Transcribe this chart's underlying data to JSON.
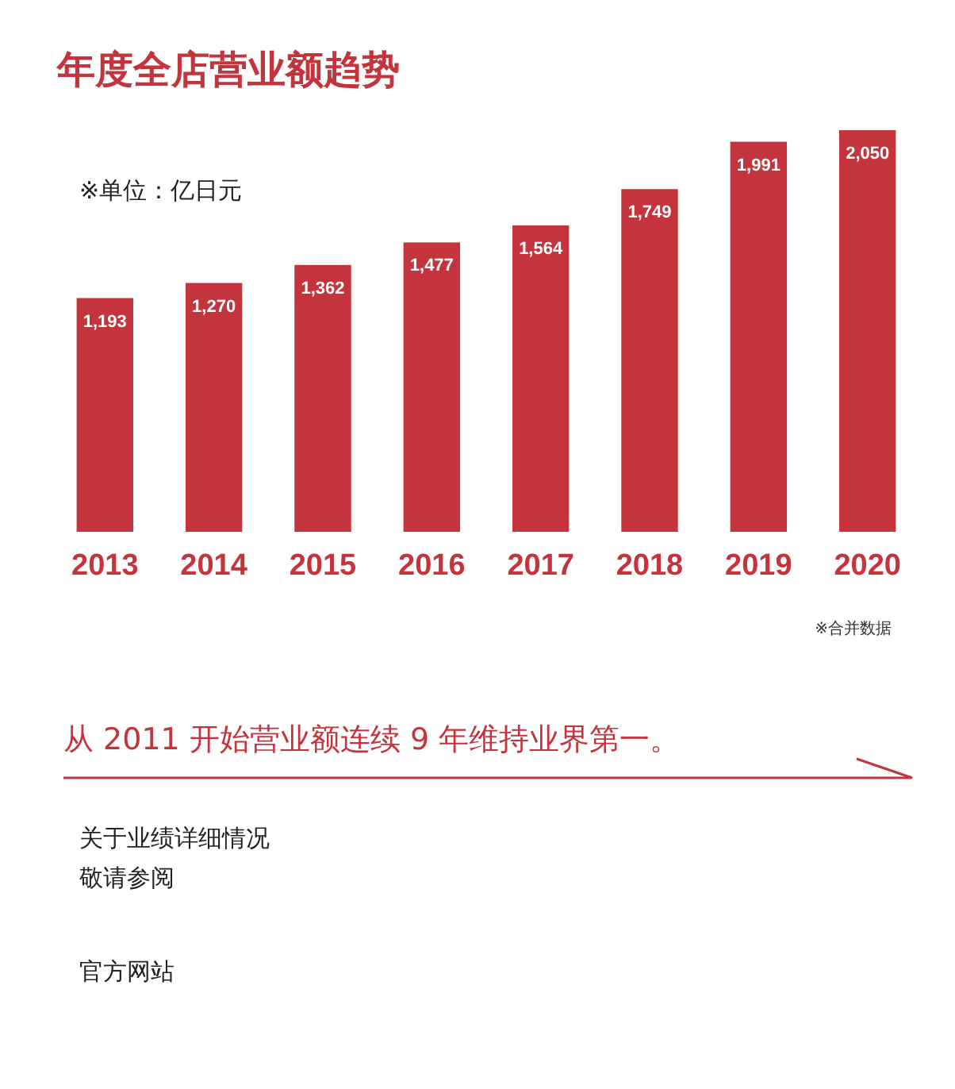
{
  "chart_data": {
    "type": "bar",
    "title": "年度全店营业额趋势",
    "subtitle": "※单位：亿日元",
    "categories": [
      "2013",
      "2014",
      "2015",
      "2016",
      "2017",
      "2018",
      "2019",
      "2020"
    ],
    "values": [
      1193,
      1270,
      1362,
      1477,
      1564,
      1749,
      1991,
      2050
    ],
    "color": "#c3343c",
    "value_labels": [
      "1,193",
      "1,270",
      "1,362",
      "1,477",
      "1,564",
      "1,749",
      "1,991",
      "2,050"
    ],
    "annotations": [
      "※合并数据",
      "从 2011 开始营业额连续 9 年维持业界第一。",
      "关于业绩详细情况",
      "敬请参阅",
      "官方网站"
    ]
  }
}
